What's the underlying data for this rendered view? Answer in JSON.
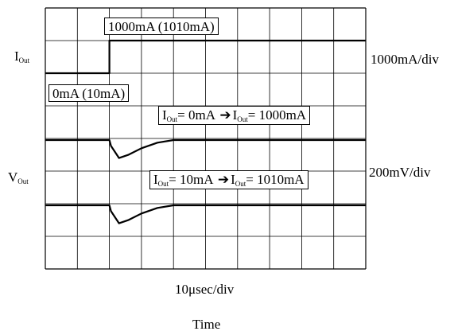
{
  "chart_data": {
    "type": "line",
    "grid": "10 x 8 divisions",
    "x_scale_label": "10μsec/div",
    "x_axis_label": "Time",
    "current_channel": {
      "label_main": "I",
      "label_sub": "Out",
      "scale_label": "1000mA/div",
      "low_level_label": "0mA (10mA)",
      "high_level_label": "1000mA (1010mA)"
    },
    "voltage_channel": {
      "label_main": "V",
      "label_sub": "Out",
      "scale_label": "200mV/div"
    },
    "annotations": [
      {
        "from_main": "I",
        "from_sub": "Out",
        "from_value": "= 0mA",
        "to_main": "I",
        "to_sub": "Out",
        "to_value": "= 1000mA"
      },
      {
        "from_main": "I",
        "from_sub": "Out",
        "from_value": "= 10mA",
        "to_main": "I",
        "to_sub": "Out",
        "to_value": "= 1010mA"
      }
    ],
    "series": [
      {
        "channel": "I_Out",
        "x_div": [
          0,
          2,
          2,
          10
        ],
        "y_div": [
          0,
          0,
          1,
          1
        ]
      },
      {
        "channel": "V_Out",
        "x_div": [
          0,
          2,
          2.05,
          2.3,
          2.6,
          3,
          3.5,
          4,
          10
        ],
        "y_div": [
          0,
          0,
          -0.18,
          -0.55,
          -0.45,
          -0.25,
          -0.08,
          0,
          0
        ]
      },
      {
        "channel": "V_Out",
        "x_div": [
          0,
          2,
          2.05,
          2.3,
          2.6,
          3,
          3.5,
          4,
          10
        ],
        "y_div": [
          0,
          0,
          -0.18,
          -0.55,
          -0.45,
          -0.25,
          -0.08,
          0,
          0
        ]
      }
    ]
  }
}
